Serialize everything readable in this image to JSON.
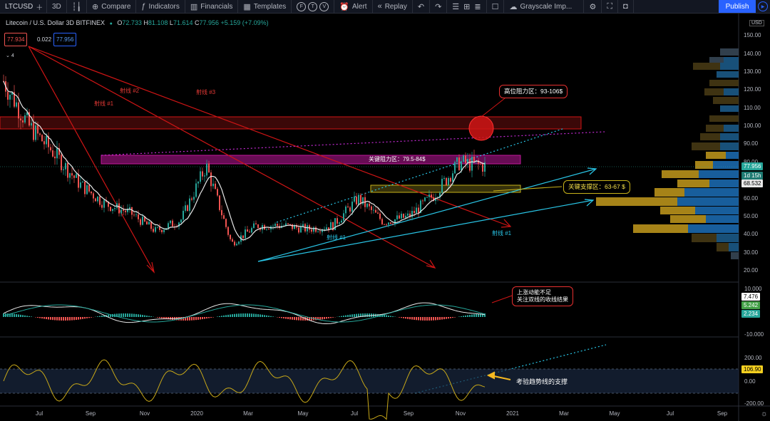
{
  "toolbar": {
    "symbol": "LTCUSD",
    "interval": "3D",
    "compare": "Compare",
    "indicators": "Indicators",
    "financials": "Financials",
    "templates": "Templates",
    "alert": "Alert",
    "replay": "Replay",
    "theme": "Grayscale Imp...",
    "publish": "Publish"
  },
  "legend": {
    "title": "Litecoin / U.S. Dollar  3D  BITFINEX",
    "o_label": "O",
    "o": "72.733",
    "h_label": "H",
    "h": "81.108",
    "l_label": "L",
    "l": "71.614",
    "c_label": "C",
    "c": "77.956",
    "change": "+5.159 (+7.09%)"
  },
  "quote": {
    "sell": "77.934",
    "spread": "0.022",
    "buy": "77.956",
    "count": "4"
  },
  "price_axis": {
    "currency": "USD",
    "ticks": [
      "150.00",
      "140.00",
      "130.00",
      "120.00",
      "110.00",
      "100.00",
      "90.00",
      "80.00",
      "70.00",
      "60.00",
      "50.00",
      "40.00",
      "30.00",
      "20.00"
    ],
    "last_price": "77.956",
    "countdown": "1d 15h",
    "ma_value": "68.532"
  },
  "macd_axis": {
    "ticks": [
      "10.000",
      "-10.000"
    ],
    "v1": "7.476",
    "v2": "5.242",
    "v3": "2.234"
  },
  "cci_axis": {
    "ticks": [
      "200.00",
      "0.00",
      "-200.00"
    ],
    "value": "106.90"
  },
  "time_axis": [
    "Jul",
    "Sep",
    "Nov",
    "2020",
    "Mar",
    "May",
    "Jul",
    "Sep",
    "Nov",
    "2021",
    "Mar",
    "May",
    "Jul",
    "Sep"
  ],
  "annotations": {
    "ray1_left": "射线 #1",
    "ray2": "射线 #2",
    "ray3": "射线 #3",
    "resistance_zone": "关键阻力区：79.5-84$",
    "high_resistance": "高位阻力区：93-106$",
    "support_zone": "关键支撑区：63-67 $",
    "ray1_blue": "射线 #1",
    "ray1_right": "射线 #1",
    "macd_note_1": "上涨动能不足",
    "macd_note_2": "关注双线的收线结果",
    "cci_note": "考验趋势线的支撑"
  },
  "chart_data": {
    "type": "candlestick",
    "title": "Litecoin / U.S. Dollar 3D BITFINEX",
    "ohlc_last": {
      "open": 72.733,
      "high": 81.108,
      "low": 71.614,
      "close": 77.956
    },
    "close_path": [
      [
        "2019-06",
        125
      ],
      [
        "2019-07",
        100
      ],
      [
        "2019-08",
        85
      ],
      [
        "2019-09",
        68
      ],
      [
        "2019-10",
        57
      ],
      [
        "2019-11",
        52
      ],
      [
        "2019-12",
        42
      ],
      [
        "2020-01",
        48
      ],
      [
        "2020-02",
        78
      ],
      [
        "2020-03",
        35
      ],
      [
        "2020-04",
        45
      ],
      [
        "2020-05",
        45
      ],
      [
        "2020-06",
        43
      ],
      [
        "2020-07",
        45
      ],
      [
        "2020-08",
        60
      ],
      [
        "2020-09",
        47
      ],
      [
        "2020-10",
        50
      ],
      [
        "2020-11",
        62
      ],
      [
        "2020-11-20",
        80
      ],
      [
        "2020-11-26",
        78
      ]
    ],
    "ylim": [
      20,
      155
    ],
    "zones": {
      "high_resistance": [
        93,
        106
      ],
      "key_resistance": [
        79.5,
        84
      ],
      "key_support": [
        63,
        67
      ]
    },
    "cci_last": 106.9
  },
  "colors": {
    "up": "#26a69a",
    "down": "#ef5350",
    "ray": "#d01515",
    "cyan": "#29c5e6",
    "magenta": "#b00f9a",
    "support": "#c8b21a",
    "accent": "#2962ff"
  }
}
